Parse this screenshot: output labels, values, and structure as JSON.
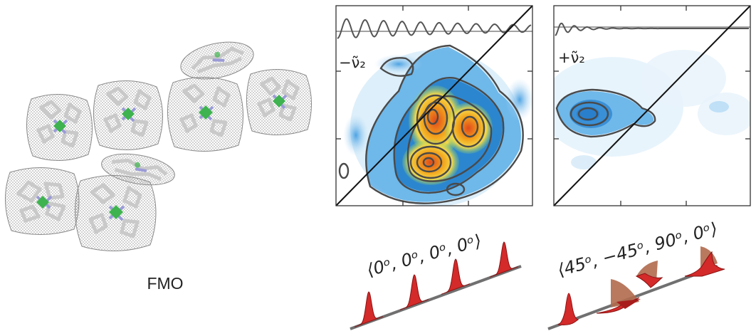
{
  "complex_label": "FMO",
  "colors": {
    "mesh": "#8a8a8a",
    "ring": "#c8c8c8",
    "nitrogen": "#9b9bd8",
    "magnesium": "#3fb34f",
    "contour_line": "#4a4a4a",
    "pulse": "#d42a2a",
    "wedge": "#b06a4e"
  },
  "panels": [
    {
      "label": "−ν̃₂"
    },
    {
      "label": "+ν̃₂"
    }
  ],
  "polarizations": [
    {
      "label": "⟨0ᵒ, 0ᵒ, 0ᵒ, 0ᵒ⟩"
    },
    {
      "label": "⟨45ᵒ, −45ᵒ, 90ᵒ, 0ᵒ⟩"
    }
  ]
}
